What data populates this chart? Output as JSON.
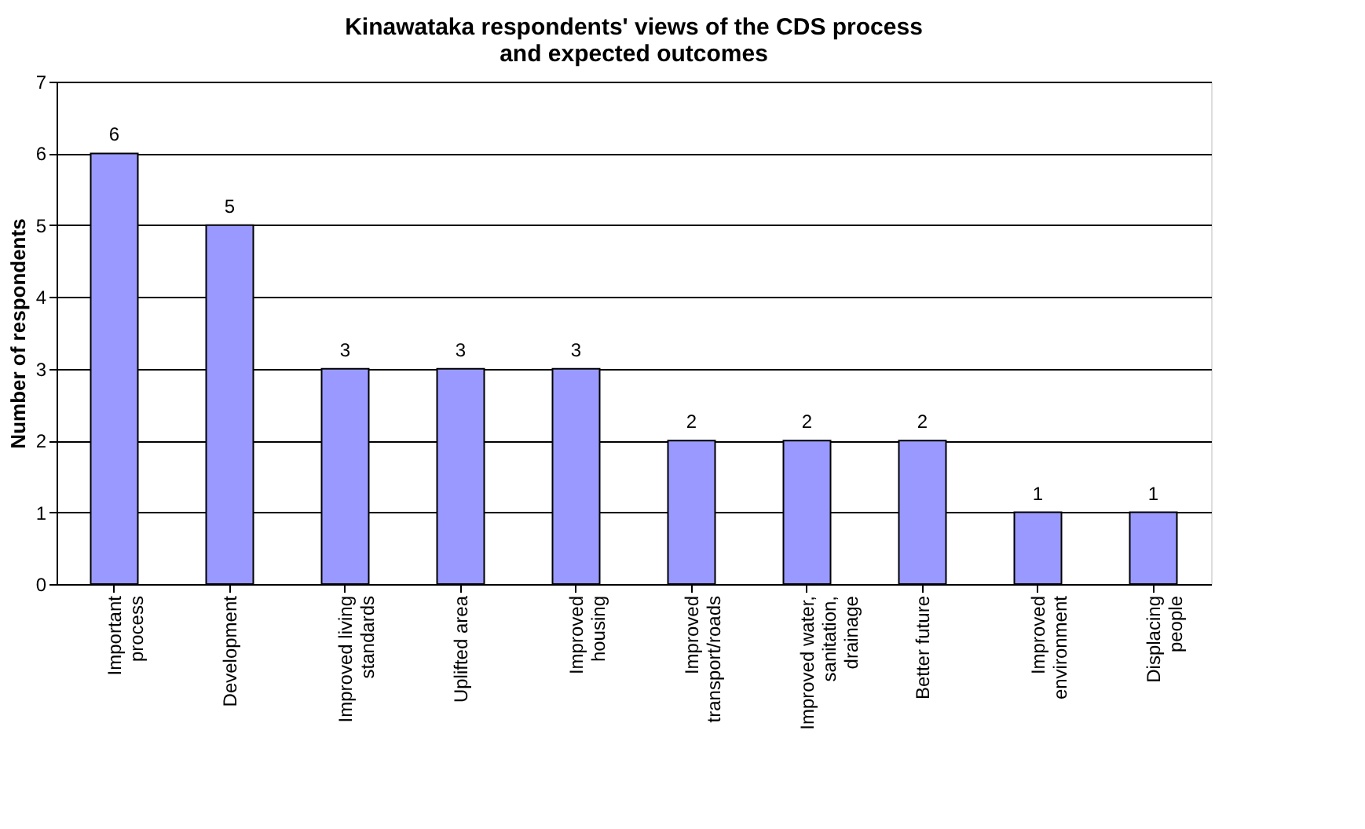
{
  "chart_data": {
    "type": "bar",
    "title": "Kinawataka respondents' views of the CDS process\nand expected outcomes",
    "ylabel": "Number of respondents",
    "categories": [
      "Important\nprocess",
      "Development",
      "Improved living\nstandards",
      "Uplifted area",
      "Improved\nhousing",
      "Improved\ntransport/roads",
      "Improved water,\nsanitation,\ndrainage",
      "Better future",
      "Improved\nenvironment",
      "Displacing\npeople"
    ],
    "values": [
      6,
      5,
      3,
      3,
      3,
      2,
      2,
      2,
      1,
      1
    ],
    "color": "#9999ff",
    "ylim": [
      0,
      7
    ],
    "yticks": [
      0,
      1,
      2,
      3,
      4,
      5,
      6,
      7
    ],
    "grid": "y",
    "data_labels": true
  }
}
